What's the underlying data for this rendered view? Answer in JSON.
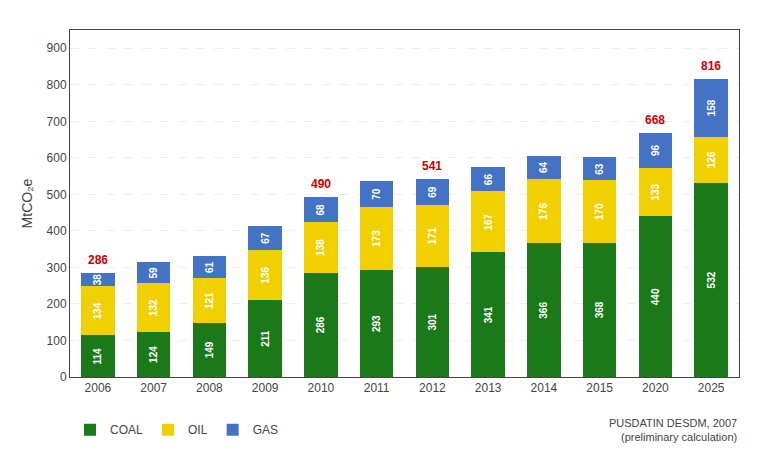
{
  "chart_data": {
    "type": "bar",
    "stacked": true,
    "categories": [
      "2006",
      "2007",
      "2008",
      "2009",
      "2010",
      "2011",
      "2012",
      "2013",
      "2014",
      "2015",
      "2020",
      "2025"
    ],
    "series": [
      {
        "name": "COAL",
        "color": "#1a7a1a",
        "values": [
          114,
          124,
          149,
          211,
          286,
          293,
          301,
          341,
          366,
          368,
          440,
          532
        ]
      },
      {
        "name": "OIL",
        "color": "#f0d000",
        "values": [
          134,
          132,
          121,
          136,
          138,
          173,
          171,
          167,
          176,
          170,
          133,
          126
        ]
      },
      {
        "name": "GAS",
        "color": "#4472c4",
        "values": [
          38,
          59,
          61,
          67,
          68,
          70,
          69,
          66,
          64,
          63,
          96,
          158
        ]
      }
    ],
    "ylabel": "MtCO₂e",
    "ylim": [
      0,
      950
    ],
    "yticks": [
      0,
      100,
      200,
      300,
      400,
      500,
      600,
      700,
      800,
      900
    ],
    "grid": true,
    "legend": "bottom left",
    "data_labels": true,
    "annotations": [
      {
        "x": "2006",
        "text": "286",
        "color": "#cc0000"
      },
      {
        "x": "2010",
        "text": "490",
        "color": "#cc0000"
      },
      {
        "x": "2012",
        "text": "541",
        "color": "#cc0000"
      },
      {
        "x": "2020",
        "text": "668",
        "color": "#cc0000"
      },
      {
        "x": "2025",
        "text": "816",
        "color": "#cc0000"
      },
      {
        "text": "PUSDATIN DESDM, 2007\n(preliminary calculation)"
      }
    ]
  }
}
